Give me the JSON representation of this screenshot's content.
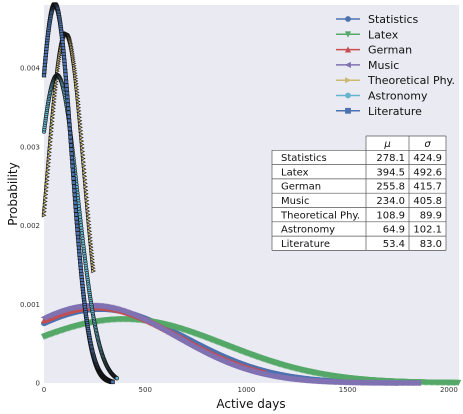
{
  "chart_data": {
    "type": "scatter",
    "xlabel": "Active days",
    "ylabel": "Probability",
    "xlim": [
      0,
      2050
    ],
    "ylim": [
      0,
      0.0048
    ],
    "xticks": [
      "0",
      "500",
      "1000",
      "1500",
      "2000"
    ],
    "yticks": [
      "0",
      "0.001",
      "0.002",
      "0.003",
      "0.004"
    ],
    "grid": false,
    "legend_position": "top-right",
    "series": [
      {
        "name": "Statistics",
        "mu": 278.1,
        "sigma": 424.9,
        "xmax": 1750,
        "color": "#4C72B0",
        "marker": "o"
      },
      {
        "name": "Latex",
        "mu": 394.5,
        "sigma": 492.6,
        "xmax": 2050,
        "color": "#55A868",
        "marker": "v"
      },
      {
        "name": "German",
        "mu": 255.8,
        "sigma": 415.7,
        "xmax": 1100,
        "color": "#C44E52",
        "marker": "^"
      },
      {
        "name": "Music",
        "mu": 234.0,
        "sigma": 405.8,
        "xmax": 1850,
        "color": "#8172B2",
        "marker": "<"
      },
      {
        "name": "Theoretical Phy.",
        "mu": 108.9,
        "sigma": 89.9,
        "xmax": 245,
        "color": "#CCB974",
        "marker": ">"
      },
      {
        "name": "Astronomy",
        "mu": 64.9,
        "sigma": 102.1,
        "xmax": 360,
        "color": "#64B5CD",
        "marker": "o"
      },
      {
        "name": "Literature",
        "mu": 53.4,
        "sigma": 83.0,
        "xmax": 340,
        "color": "#4C72B0",
        "marker": "s"
      }
    ],
    "table": {
      "columns": [
        "μ",
        "σ"
      ],
      "rows": [
        [
          "Statistics",
          "278.1",
          "424.9"
        ],
        [
          "Latex",
          "394.5",
          "492.6"
        ],
        [
          "German",
          "255.8",
          "415.7"
        ],
        [
          "Music",
          "234.0",
          "405.8"
        ],
        [
          "Theoretical Phy.",
          "108.9",
          "89.9"
        ],
        [
          "Astronomy",
          "64.9",
          "102.1"
        ],
        [
          "Literature",
          "53.4",
          "83.0"
        ]
      ]
    }
  }
}
